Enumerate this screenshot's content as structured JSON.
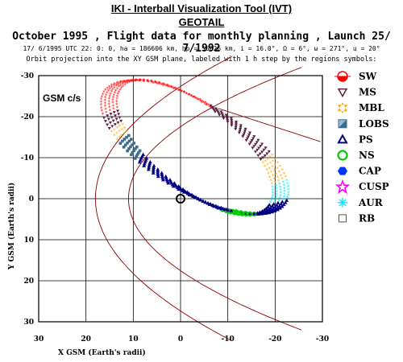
{
  "header": {
    "title": "IKI - Interball Visualization Tool (IVT)",
    "mission": "GEOTAIL",
    "subtitle": "October  1995 ,  Flight data for monthly planning ,   Launch 25/ 7/1992",
    "params": "17/ 6/1995 UTC 22: 0: 0, ha = 186606 km, hp =  56626 km, i = 16.0°, Ω =   6°, ω = 271°, u =  20°",
    "description": "Orbit projection into the XY GSM plane, labeled with 1 h step by the regions symbols:"
  },
  "chart_data": {
    "type": "scatter",
    "frame_label": "GSM c/s",
    "xlabel": "X GSM (Earth's radii)",
    "ylabel": "Y GSM (Earth's radii)",
    "xlim": [
      30,
      -30
    ],
    "ylim": [
      30,
      -30
    ],
    "x_ticks": [
      30,
      20,
      10,
      0,
      -10,
      -20,
      -30
    ],
    "y_ticks": [
      -30,
      -20,
      -10,
      0,
      10,
      20,
      30
    ],
    "grid": true,
    "legend_position": "right",
    "earth": {
      "x": 0,
      "y": 0
    },
    "orbit": {
      "apogee_x": 14,
      "apogee_y": -27,
      "perigee_x": -20,
      "perigee_y": 2
    },
    "regions": [
      {
        "code": "SW",
        "color": "#ff0000",
        "symbol": "sun"
      },
      {
        "code": "MS",
        "color": "#5a2040",
        "symbol": "triangle-down"
      },
      {
        "code": "MBL",
        "color": "#ffa500",
        "symbol": "star6"
      },
      {
        "code": "LOBS",
        "color": "#3a6d8c",
        "symbol": "square-half"
      },
      {
        "code": "PS",
        "color": "#000080",
        "symbol": "triangle-up"
      },
      {
        "code": "NS",
        "color": "#00cc00",
        "symbol": "circle"
      },
      {
        "code": "CAP",
        "color": "#0033ff",
        "symbol": "hexagon"
      },
      {
        "code": "CUSP",
        "color": "#ff00ff",
        "symbol": "star5"
      },
      {
        "code": "AUR",
        "color": "#00e5ff",
        "symbol": "asterisk"
      },
      {
        "code": "RB",
        "color": "#555555",
        "symbol": "square"
      }
    ]
  }
}
